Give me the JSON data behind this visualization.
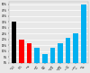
{
  "categories": [
    "NGCC\n(ref.)",
    "Coal\nIGCC",
    "Coal\nPC",
    "NG\nOxy-\nfuel",
    "Coal\nOxy-\nfuel",
    "NG\nChem.\nLoop.",
    "Coal\nChem.\nLoop.",
    "Pre-\ncomb.\nNG",
    "Post-\ncomb.\nNG",
    "Oxy-\nfuel\nNG"
  ],
  "values": [
    35,
    20,
    17,
    13,
    7,
    13,
    17,
    21,
    25,
    50
  ],
  "colors": [
    "#000000",
    "#ff0000",
    "#ff0000",
    "#00b0f0",
    "#00b0f0",
    "#00b0f0",
    "#00b0f0",
    "#00b0f0",
    "#00b0f0",
    "#00b0f0"
  ],
  "ylim": [
    0,
    52
  ],
  "ytick_values": [
    0,
    5,
    10,
    15,
    20,
    25,
    30,
    35,
    40,
    45,
    50
  ],
  "ytick_labels": [
    "0%",
    "5%",
    "10%",
    "15%",
    "20%",
    "25%",
    "30%",
    "35%",
    "40%",
    "45%",
    "50%"
  ],
  "background_color": "#e8e8e8",
  "grid_color": "#ffffff",
  "bar_width": 0.65,
  "label_fontsize": 1.5,
  "tick_fontsize": 2.0
}
